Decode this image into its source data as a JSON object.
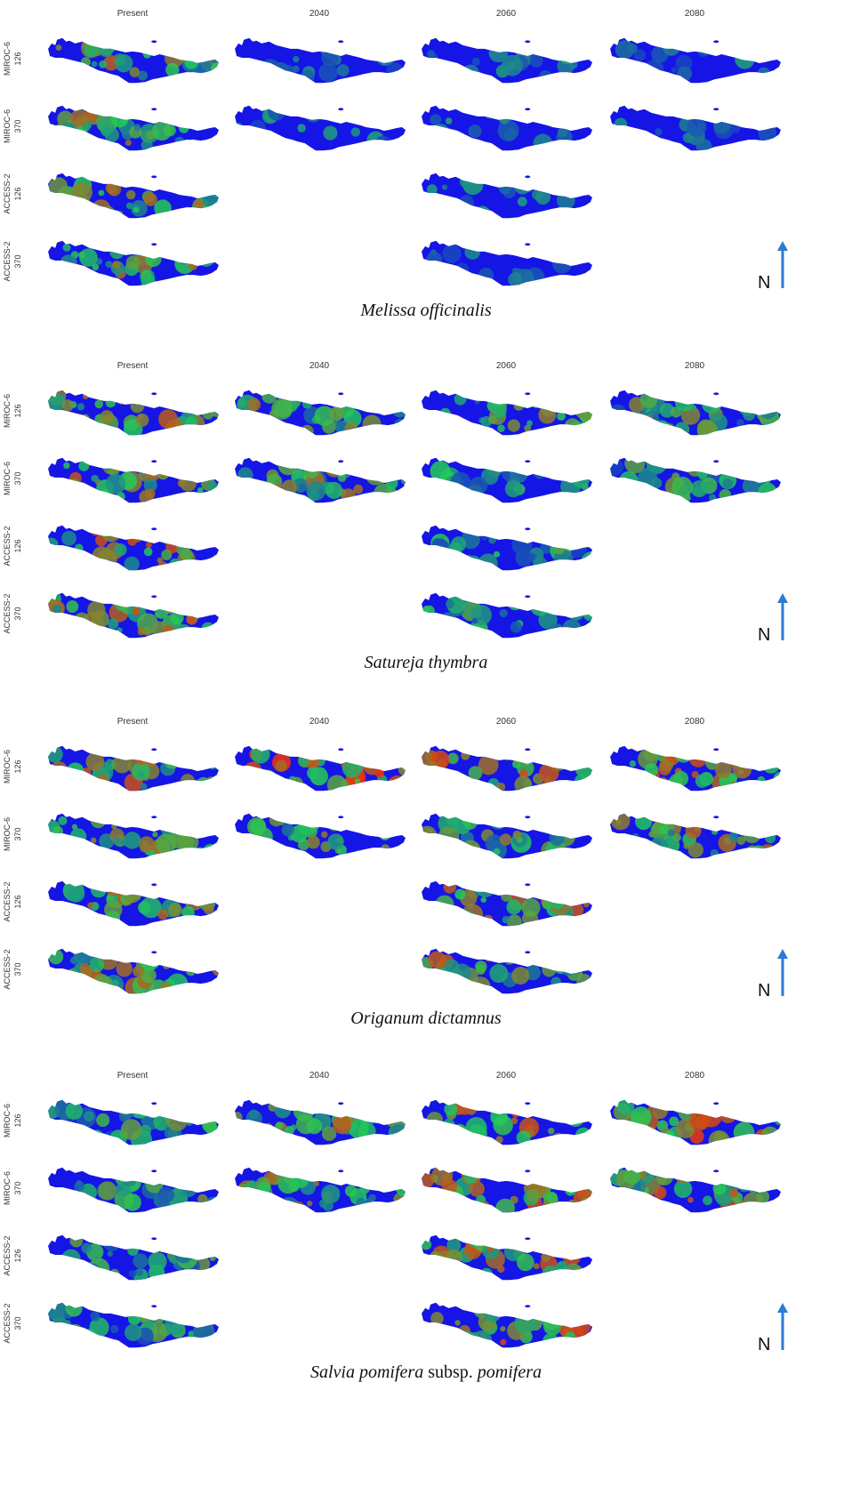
{
  "columns": [
    "Present",
    "2040",
    "2060",
    "2080"
  ],
  "colors": {
    "low": "#1515e6",
    "mid": "#22cc55",
    "high": "#ff2a00",
    "north_arrow": "#2a7bd4"
  },
  "north_label": "N",
  "panels": [
    {
      "caption_parts": [
        {
          "text": "Melissa officinalis",
          "italic": true
        }
      ],
      "rows": [
        {
          "model": "MIROC-6",
          "scenario": "126",
          "maps": [
            "present",
            "2040",
            "2060",
            "2080"
          ],
          "levels": [
            0.55,
            0.1,
            0.1,
            0.1
          ]
        },
        {
          "model": "MIROC-6",
          "scenario": "370",
          "maps": [
            "present",
            "2040",
            "2060",
            "2080"
          ],
          "levels": [
            0.55,
            0.1,
            0.1,
            0.05
          ]
        },
        {
          "model": "ACCESS-2",
          "scenario": "126",
          "maps": [
            "present",
            "2060"
          ],
          "levels": [
            0.55,
            0.1
          ]
        },
        {
          "model": "ACCESS-2",
          "scenario": "370",
          "maps": [
            "present",
            "2060"
          ],
          "levels": [
            0.55,
            0.05
          ]
        }
      ]
    },
    {
      "caption_parts": [
        {
          "text": "Satureja thymbra",
          "italic": true
        }
      ],
      "rows": [
        {
          "model": "MIROC-6",
          "scenario": "126",
          "maps": [
            "present",
            "2040",
            "2060",
            "2080"
          ],
          "levels": [
            0.6,
            0.5,
            0.45,
            0.45
          ]
        },
        {
          "model": "MIROC-6",
          "scenario": "370",
          "maps": [
            "present",
            "2040",
            "2060",
            "2080"
          ],
          "levels": [
            0.6,
            0.5,
            0.3,
            0.4
          ]
        },
        {
          "model": "ACCESS-2",
          "scenario": "126",
          "maps": [
            "present",
            "2060"
          ],
          "levels": [
            0.6,
            0.35
          ]
        },
        {
          "model": "ACCESS-2",
          "scenario": "370",
          "maps": [
            "present",
            "2060"
          ],
          "levels": [
            0.6,
            0.3
          ]
        }
      ]
    },
    {
      "caption_parts": [
        {
          "text": "Origanum dictamnus",
          "italic": true
        }
      ],
      "rows": [
        {
          "model": "MIROC-6",
          "scenario": "126",
          "maps": [
            "present",
            "2040",
            "2060",
            "2080"
          ],
          "levels": [
            0.6,
            0.7,
            0.65,
            0.65
          ]
        },
        {
          "model": "MIROC-6",
          "scenario": "370",
          "maps": [
            "present",
            "2040",
            "2060",
            "2080"
          ],
          "levels": [
            0.6,
            0.55,
            0.5,
            0.55
          ]
        },
        {
          "model": "ACCESS-2",
          "scenario": "126",
          "maps": [
            "present",
            "2060"
          ],
          "levels": [
            0.6,
            0.6
          ]
        },
        {
          "model": "ACCESS-2",
          "scenario": "370",
          "maps": [
            "present",
            "2060"
          ],
          "levels": [
            0.6,
            0.55
          ]
        }
      ]
    },
    {
      "caption_parts": [
        {
          "text": "Salvia pomifera",
          "italic": true
        },
        {
          "text": " subsp. ",
          "italic": false
        },
        {
          "text": "pomifera",
          "italic": true
        }
      ],
      "rows": [
        {
          "model": "MIROC-6",
          "scenario": "126",
          "maps": [
            "present",
            "2040",
            "2060",
            "2080"
          ],
          "levels": [
            0.4,
            0.55,
            0.7,
            0.7
          ]
        },
        {
          "model": "MIROC-6",
          "scenario": "370",
          "maps": [
            "present",
            "2040",
            "2060",
            "2080"
          ],
          "levels": [
            0.4,
            0.55,
            0.7,
            0.6
          ]
        },
        {
          "model": "ACCESS-2",
          "scenario": "126",
          "maps": [
            "present",
            "2060"
          ],
          "levels": [
            0.4,
            0.65
          ]
        },
        {
          "model": "ACCESS-2",
          "scenario": "370",
          "maps": [
            "present",
            "2060"
          ],
          "levels": [
            0.4,
            0.65
          ]
        }
      ]
    }
  ]
}
